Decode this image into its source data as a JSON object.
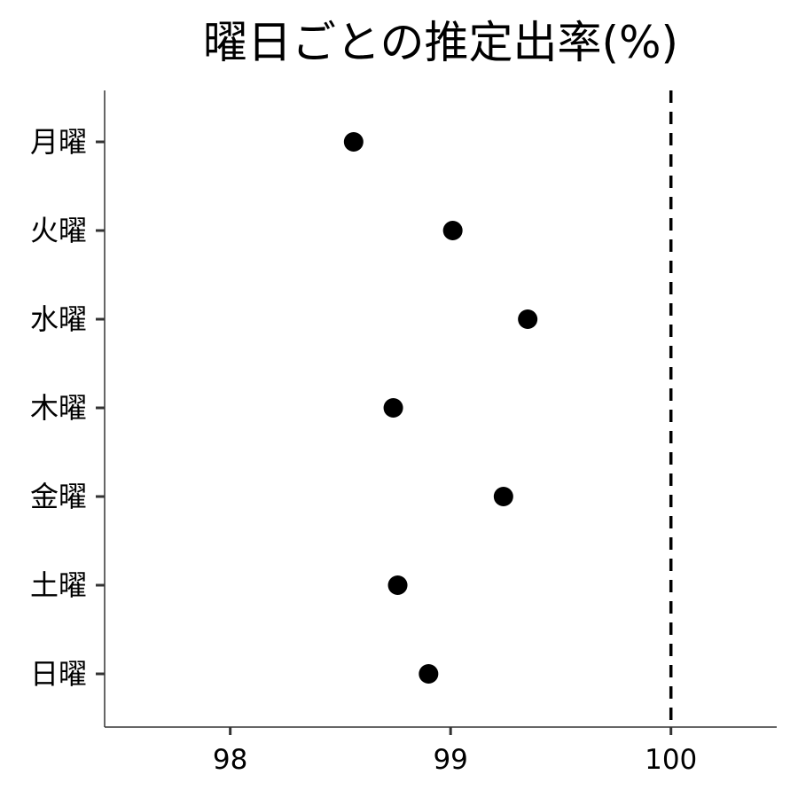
{
  "chart_data": {
    "type": "scatter",
    "title": "曜日ごとの推定出率(%)",
    "xlabel": "",
    "ylabel": "",
    "categories": [
      "月曜",
      "火曜",
      "水曜",
      "木曜",
      "金曜",
      "土曜",
      "日曜"
    ],
    "values": [
      98.56,
      99.01,
      99.35,
      98.74,
      99.24,
      98.76,
      98.9
    ],
    "xlim": [
      97.43,
      100.48
    ],
    "xticks": [
      98,
      99,
      100
    ],
    "reference_line": {
      "x": 100,
      "style": "dashed"
    },
    "grid": false,
    "legend": "none"
  }
}
